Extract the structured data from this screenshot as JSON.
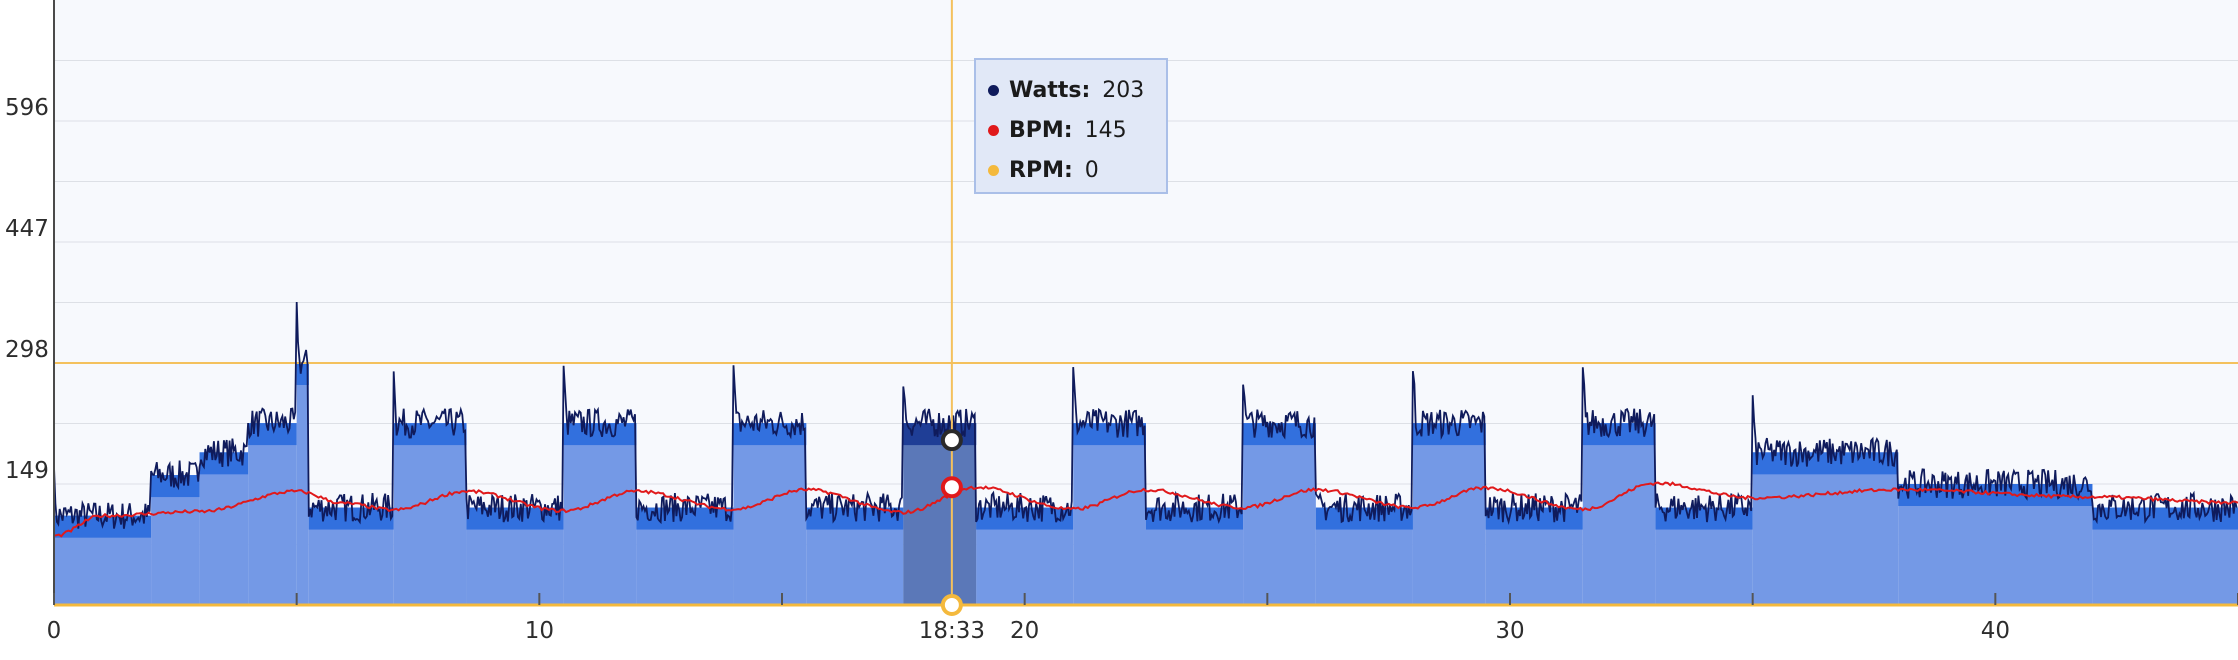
{
  "chart_data": {
    "type": "line",
    "xlim": [
      0,
      45
    ],
    "ylim": [
      0,
      745
    ],
    "y_ticks": [
      149,
      298,
      447,
      596
    ],
    "x_ticks": [
      0,
      10,
      20,
      30,
      40
    ],
    "x_tick_labels": [
      "0",
      "10",
      "20",
      "30",
      "40"
    ],
    "grid": true,
    "target_blocks": [
      {
        "x0": 0,
        "x1": 2,
        "y": 110
      },
      {
        "x0": 2,
        "x1": 3,
        "y": 160
      },
      {
        "x0": 3,
        "x1": 4,
        "y": 188
      },
      {
        "x0": 4,
        "x1": 5,
        "y": 224
      },
      {
        "x0": 5,
        "x1": 5.25,
        "y": 298
      },
      {
        "x0": 5.25,
        "x1": 7,
        "y": 120
      },
      {
        "x0": 7,
        "x1": 8.5,
        "y": 224
      },
      {
        "x0": 8.5,
        "x1": 10.5,
        "y": 120
      },
      {
        "x0": 10.5,
        "x1": 12,
        "y": 224
      },
      {
        "x0": 12,
        "x1": 14,
        "y": 120
      },
      {
        "x0": 14,
        "x1": 15.5,
        "y": 224
      },
      {
        "x0": 15.5,
        "x1": 17.5,
        "y": 120
      },
      {
        "x0": 17.5,
        "x1": 19,
        "y": 224
      },
      {
        "x0": 19,
        "x1": 21,
        "y": 120
      },
      {
        "x0": 21,
        "x1": 22.5,
        "y": 224
      },
      {
        "x0": 22.5,
        "x1": 24.5,
        "y": 120
      },
      {
        "x0": 24.5,
        "x1": 26,
        "y": 224
      },
      {
        "x0": 26,
        "x1": 28,
        "y": 120
      },
      {
        "x0": 28,
        "x1": 29.5,
        "y": 224
      },
      {
        "x0": 29.5,
        "x1": 31.5,
        "y": 120
      },
      {
        "x0": 31.5,
        "x1": 33,
        "y": 224
      },
      {
        "x0": 33,
        "x1": 35,
        "y": 120
      },
      {
        "x0": 35,
        "x1": 38,
        "y": 188
      },
      {
        "x0": 38,
        "x1": 42,
        "y": 149
      },
      {
        "x0": 42,
        "x1": 45,
        "y": 120
      }
    ],
    "active_block": {
      "x0": 17.5,
      "x1": 19
    },
    "reference_line": {
      "y": 298,
      "color": "#f4c15d"
    },
    "series": [
      {
        "name": "Watts",
        "color": "#0f1b5c",
        "base": [
          110,
          160,
          188,
          224,
          298,
          120,
          224,
          120,
          224,
          120,
          224,
          120,
          224,
          120,
          224,
          120,
          224,
          120,
          224,
          120,
          224,
          120,
          188,
          149,
          120
        ],
        "noise": 18,
        "spike_at_block_start": 60
      },
      {
        "name": "BPM",
        "color": "#e0191b",
        "x": [
          0,
          1,
          3,
          5,
          6,
          7,
          8.5,
          10.5,
          12,
          14,
          15.5,
          17.5,
          19,
          21,
          22.5,
          24.5,
          26,
          28,
          29.5,
          31.5,
          33,
          35,
          38,
          42,
          45
        ],
        "values": [
          85,
          110,
          115,
          140,
          125,
          117,
          140,
          116,
          140,
          118,
          142,
          114,
          145,
          118,
          142,
          120,
          142,
          120,
          144,
          118,
          150,
          132,
          142,
          133,
          126
        ]
      },
      {
        "name": "RPM",
        "color": "#f4b93d",
        "values": [
          0
        ]
      }
    ],
    "tooltip": {
      "x": 18.5,
      "x_label": "18:33",
      "rows": [
        {
          "name": "Watts:",
          "value": "203",
          "color": "#0f1b5c"
        },
        {
          "name": "BPM:",
          "value": "145",
          "color": "#e0191b"
        },
        {
          "name": "RPM:",
          "value": "0",
          "color": "#f4b93d"
        }
      ],
      "markers": [
        {
          "series": "Watts",
          "y": 203,
          "fill": "#ffffff",
          "stroke": "#2a2a2a"
        },
        {
          "series": "BPM",
          "y": 145,
          "fill": "#ffffff",
          "stroke": "#e0191b"
        },
        {
          "series": "RPM",
          "y": 0,
          "fill": "#ffffff",
          "stroke": "#f4b93d"
        }
      ]
    },
    "colors": {
      "background": "#f7f9fd",
      "grid": "#dde0e6",
      "block_fill": "#7499e6",
      "block_top": "#3270de",
      "active_fill": "#5b78b8",
      "active_top": "#1f3e96",
      "crosshair": "#f4c15d"
    }
  }
}
